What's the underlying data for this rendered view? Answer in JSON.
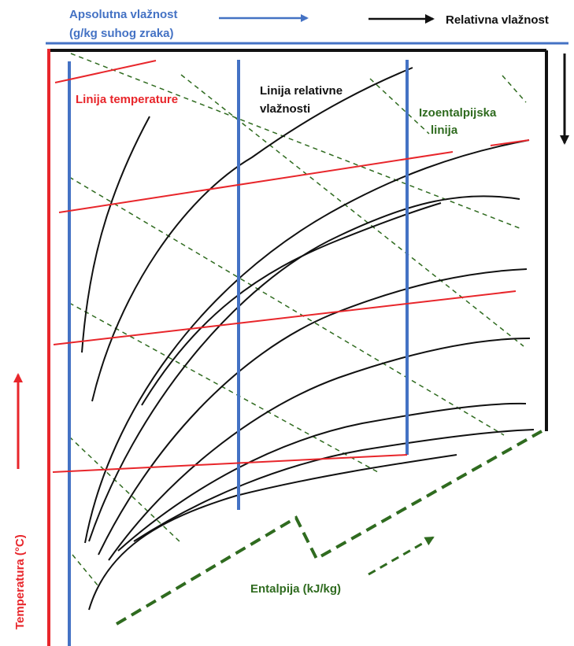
{
  "labels": {
    "absolute_humidity_line1": "Apsolutna vlažnost",
    "absolute_humidity_line2": "(g/kg suhog zraka)",
    "relative_humidity_top": "Relativna vlažnost",
    "temperature_line": "Linija temperature",
    "relative_humidity_line1": "Linija relativne",
    "relative_humidity_line2": "vlažnosti",
    "isenthalpic_line1": "Izoentalpijska",
    "isenthalpic_line2": "linija",
    "enthalpy": "Entalpija (kJ/kg)",
    "temperature_axis": "Temperatura (°C)"
  },
  "colors": {
    "humidity_lines": "#4472c4",
    "temperature_lines": "#e8262b",
    "enthalpy_lines": "#2f6b1f",
    "saturation_curves": "#111111"
  }
}
